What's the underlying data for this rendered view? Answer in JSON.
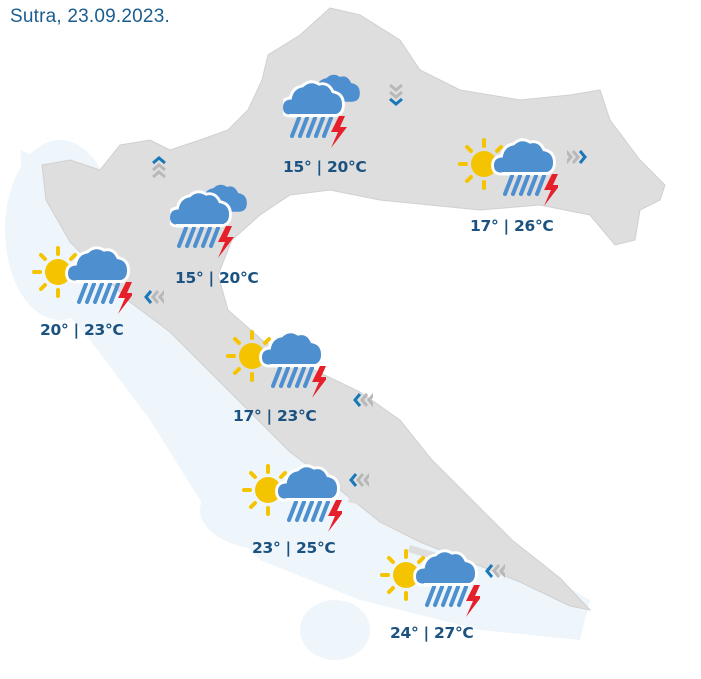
{
  "header": {
    "title": "Sutra, 23.09.2023."
  },
  "colors": {
    "land": "#dedede",
    "sea": "#eef6fc",
    "cloud": "#4d8fcf",
    "sun": "#f5c400",
    "lightning": "#e5202a",
    "text": "#1b5280",
    "wind_accent": "#1a78b8",
    "wind_gray": "#b8b8b8"
  },
  "stations": [
    {
      "icon": "double-cloud-rain-thunder",
      "temp": "15° | 20°C"
    },
    {
      "icon": "sun-cloud-rain-thunder",
      "temp": "17° | 26°C"
    },
    {
      "icon": "double-cloud-rain-thunder",
      "temp": "15° | 20°C"
    },
    {
      "icon": "sun-cloud-rain-thunder",
      "temp": "20° | 23°C"
    },
    {
      "icon": "sun-cloud-rain-thunder",
      "temp": "17° | 23°C"
    },
    {
      "icon": "sun-cloud-rain-thunder",
      "temp": "23° | 25°C"
    },
    {
      "icon": "sun-cloud-rain-thunder",
      "temp": "24° | 27°C"
    }
  ],
  "winds": [
    {
      "direction": "down"
    },
    {
      "direction": "up"
    },
    {
      "direction": "right"
    },
    {
      "direction": "left"
    },
    {
      "direction": "left"
    },
    {
      "direction": "left"
    },
    {
      "direction": "left"
    }
  ]
}
